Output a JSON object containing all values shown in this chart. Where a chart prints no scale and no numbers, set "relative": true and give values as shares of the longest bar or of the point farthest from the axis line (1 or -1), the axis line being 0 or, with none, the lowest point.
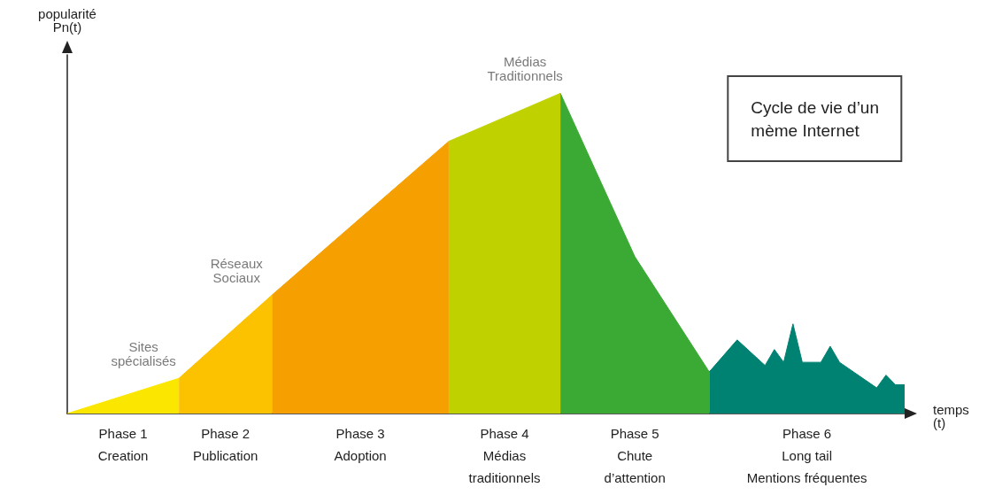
{
  "chart_data": {
    "type": "area",
    "relative": true,
    "title": "Cycle de vie d’un\nmème Internet",
    "xlabel": "temps\n(t)",
    "ylabel": "popularité\nPn(t)",
    "annotations": [
      "Sites\nspécialisés",
      "Réseaux\nSociaux",
      "Médias\nTraditionnels"
    ],
    "categories": [
      null,
      null,
      null,
      null,
      null,
      null,
      null,
      null,
      null,
      null,
      null,
      null,
      null,
      null,
      null,
      null,
      null,
      null,
      null,
      null,
      null,
      null,
      null,
      null,
      null,
      null,
      null,
      null,
      null,
      null,
      null,
      null,
      null,
      null,
      null,
      null,
      null,
      null,
      null,
      null,
      null,
      null,
      null,
      null,
      null,
      null,
      null,
      null,
      null,
      null,
      null,
      null,
      null,
      null,
      null,
      null,
      null,
      null,
      null,
      null,
      null,
      null,
      null,
      null,
      null,
      null,
      null,
      null,
      null,
      null,
      null,
      null,
      null,
      null,
      null,
      null,
      null,
      null,
      null,
      null,
      null,
      null,
      null,
      null,
      null,
      null,
      null,
      null,
      null,
      null,
      null
    ],
    "series": [
      {
        "name": "Phase 1\nCreation",
        "color": "#fbe600",
        "values": [
          0,
          null,
          null,
          null,
          null,
          null,
          null,
          null,
          null,
          null,
          null,
          null,
          0.11,
          null,
          null,
          null,
          null,
          null,
          null,
          null,
          null,
          null,
          null,
          null,
          null,
          null,
          null,
          null,
          null,
          null,
          null,
          null,
          null,
          null,
          null,
          null,
          null,
          null,
          null,
          null,
          null,
          null,
          null,
          null,
          null,
          null,
          null,
          null,
          null,
          null,
          null,
          null,
          null,
          null,
          null,
          null,
          null,
          null,
          null,
          null,
          null,
          null,
          null,
          null,
          null,
          null,
          null,
          null,
          null,
          null,
          null,
          null,
          null,
          null,
          null,
          null,
          null,
          null,
          null,
          null,
          null,
          null,
          null,
          null,
          null,
          null,
          null,
          null,
          null,
          null,
          null
        ]
      },
      {
        "name": "Phase 2\nPublication",
        "color": "#fcc200",
        "values": [
          null,
          null,
          null,
          null,
          null,
          null,
          null,
          null,
          null,
          null,
          null,
          null,
          0.11,
          null,
          null,
          null,
          null,
          null,
          null,
          null,
          null,
          null,
          0.37,
          null,
          null,
          null,
          null,
          null,
          null,
          null,
          null,
          null,
          null,
          null,
          null,
          null,
          null,
          null,
          null,
          null,
          null,
          null,
          null,
          null,
          null,
          null,
          null,
          null,
          null,
          null,
          null,
          null,
          null,
          null,
          null,
          null,
          null,
          null,
          null,
          null,
          null,
          null,
          null,
          null,
          null,
          null,
          null,
          null,
          null,
          null,
          null,
          null,
          null,
          null,
          null,
          null,
          null,
          null,
          null,
          null,
          null,
          null,
          null,
          null,
          null,
          null,
          null,
          null,
          null,
          null,
          null
        ]
      },
      {
        "name": "Phase 3\nAdoption",
        "color": "#f5a000",
        "values": [
          null,
          null,
          null,
          null,
          null,
          null,
          null,
          null,
          null,
          null,
          null,
          null,
          null,
          null,
          null,
          null,
          null,
          null,
          null,
          null,
          null,
          null,
          0.37,
          null,
          null,
          null,
          null,
          null,
          null,
          null,
          null,
          null,
          null,
          null,
          null,
          null,
          null,
          null,
          null,
          null,
          null,
          0.85,
          null,
          null,
          null,
          null,
          null,
          null,
          null,
          null,
          null,
          null,
          null,
          null,
          null,
          null,
          null,
          null,
          null,
          null,
          null,
          null,
          null,
          null,
          null,
          null,
          null,
          null,
          null,
          null,
          null,
          null,
          null,
          null,
          null,
          null,
          null,
          null,
          null,
          null,
          null,
          null,
          null,
          null,
          null,
          null,
          null,
          null,
          null,
          null,
          null
        ]
      },
      {
        "name": "Phase 4\nMédias\ntraditionnels",
        "color": "#bfd200",
        "values": [
          null,
          null,
          null,
          null,
          null,
          null,
          null,
          null,
          null,
          null,
          null,
          null,
          null,
          null,
          null,
          null,
          null,
          null,
          null,
          null,
          null,
          null,
          null,
          null,
          null,
          null,
          null,
          null,
          null,
          null,
          null,
          null,
          null,
          null,
          null,
          null,
          null,
          null,
          null,
          null,
          null,
          0.85,
          null,
          null,
          null,
          null,
          null,
          null,
          null,
          null,
          null,
          null,
          null,
          1,
          null,
          null,
          null,
          null,
          null,
          null,
          null,
          null,
          null,
          null,
          null,
          null,
          null,
          null,
          null,
          null,
          null,
          null,
          null,
          null,
          null,
          null,
          null,
          null,
          null,
          null,
          null,
          null,
          null,
          null,
          null,
          null,
          null,
          null,
          null,
          null,
          null
        ]
      },
      {
        "name": "Phase 5\nChute\nd’attention",
        "color": "#3aaa35",
        "values": [
          null,
          null,
          null,
          null,
          null,
          null,
          null,
          null,
          null,
          null,
          null,
          null,
          null,
          null,
          null,
          null,
          null,
          null,
          null,
          null,
          null,
          null,
          null,
          null,
          null,
          null,
          null,
          null,
          null,
          null,
          null,
          null,
          null,
          null,
          null,
          null,
          null,
          null,
          null,
          null,
          null,
          null,
          null,
          null,
          null,
          null,
          null,
          null,
          null,
          null,
          null,
          null,
          null,
          1,
          null,
          null,
          null,
          null,
          null,
          null,
          null,
          0.49,
          null,
          null,
          null,
          null,
          null,
          null,
          null,
          0.13,
          null,
          null,
          null,
          null,
          null,
          null,
          null,
          null,
          null,
          null,
          null,
          null,
          null,
          null,
          null,
          null,
          null,
          null,
          null,
          null,
          null
        ]
      },
      {
        "name": "Phase 6\nLong tail\nMentions fréquentes",
        "color": "#008272",
        "values": [
          null,
          null,
          null,
          null,
          null,
          null,
          null,
          null,
          null,
          null,
          null,
          null,
          null,
          null,
          null,
          null,
          null,
          null,
          null,
          null,
          null,
          null,
          null,
          null,
          null,
          null,
          null,
          null,
          null,
          null,
          null,
          null,
          null,
          null,
          null,
          null,
          null,
          null,
          null,
          null,
          null,
          null,
          null,
          null,
          null,
          null,
          null,
          null,
          null,
          null,
          null,
          null,
          null,
          null,
          null,
          null,
          null,
          null,
          null,
          null,
          null,
          null,
          null,
          null,
          null,
          null,
          null,
          null,
          null,
          0.13,
          null,
          null,
          0.23,
          null,
          null,
          0.15,
          0.2,
          0.16,
          0.28,
          0.16,
          null,
          0.16,
          0.21,
          0.16,
          null,
          null,
          null,
          0.08,
          0.12,
          0.09,
          0.09
        ]
      }
    ]
  }
}
